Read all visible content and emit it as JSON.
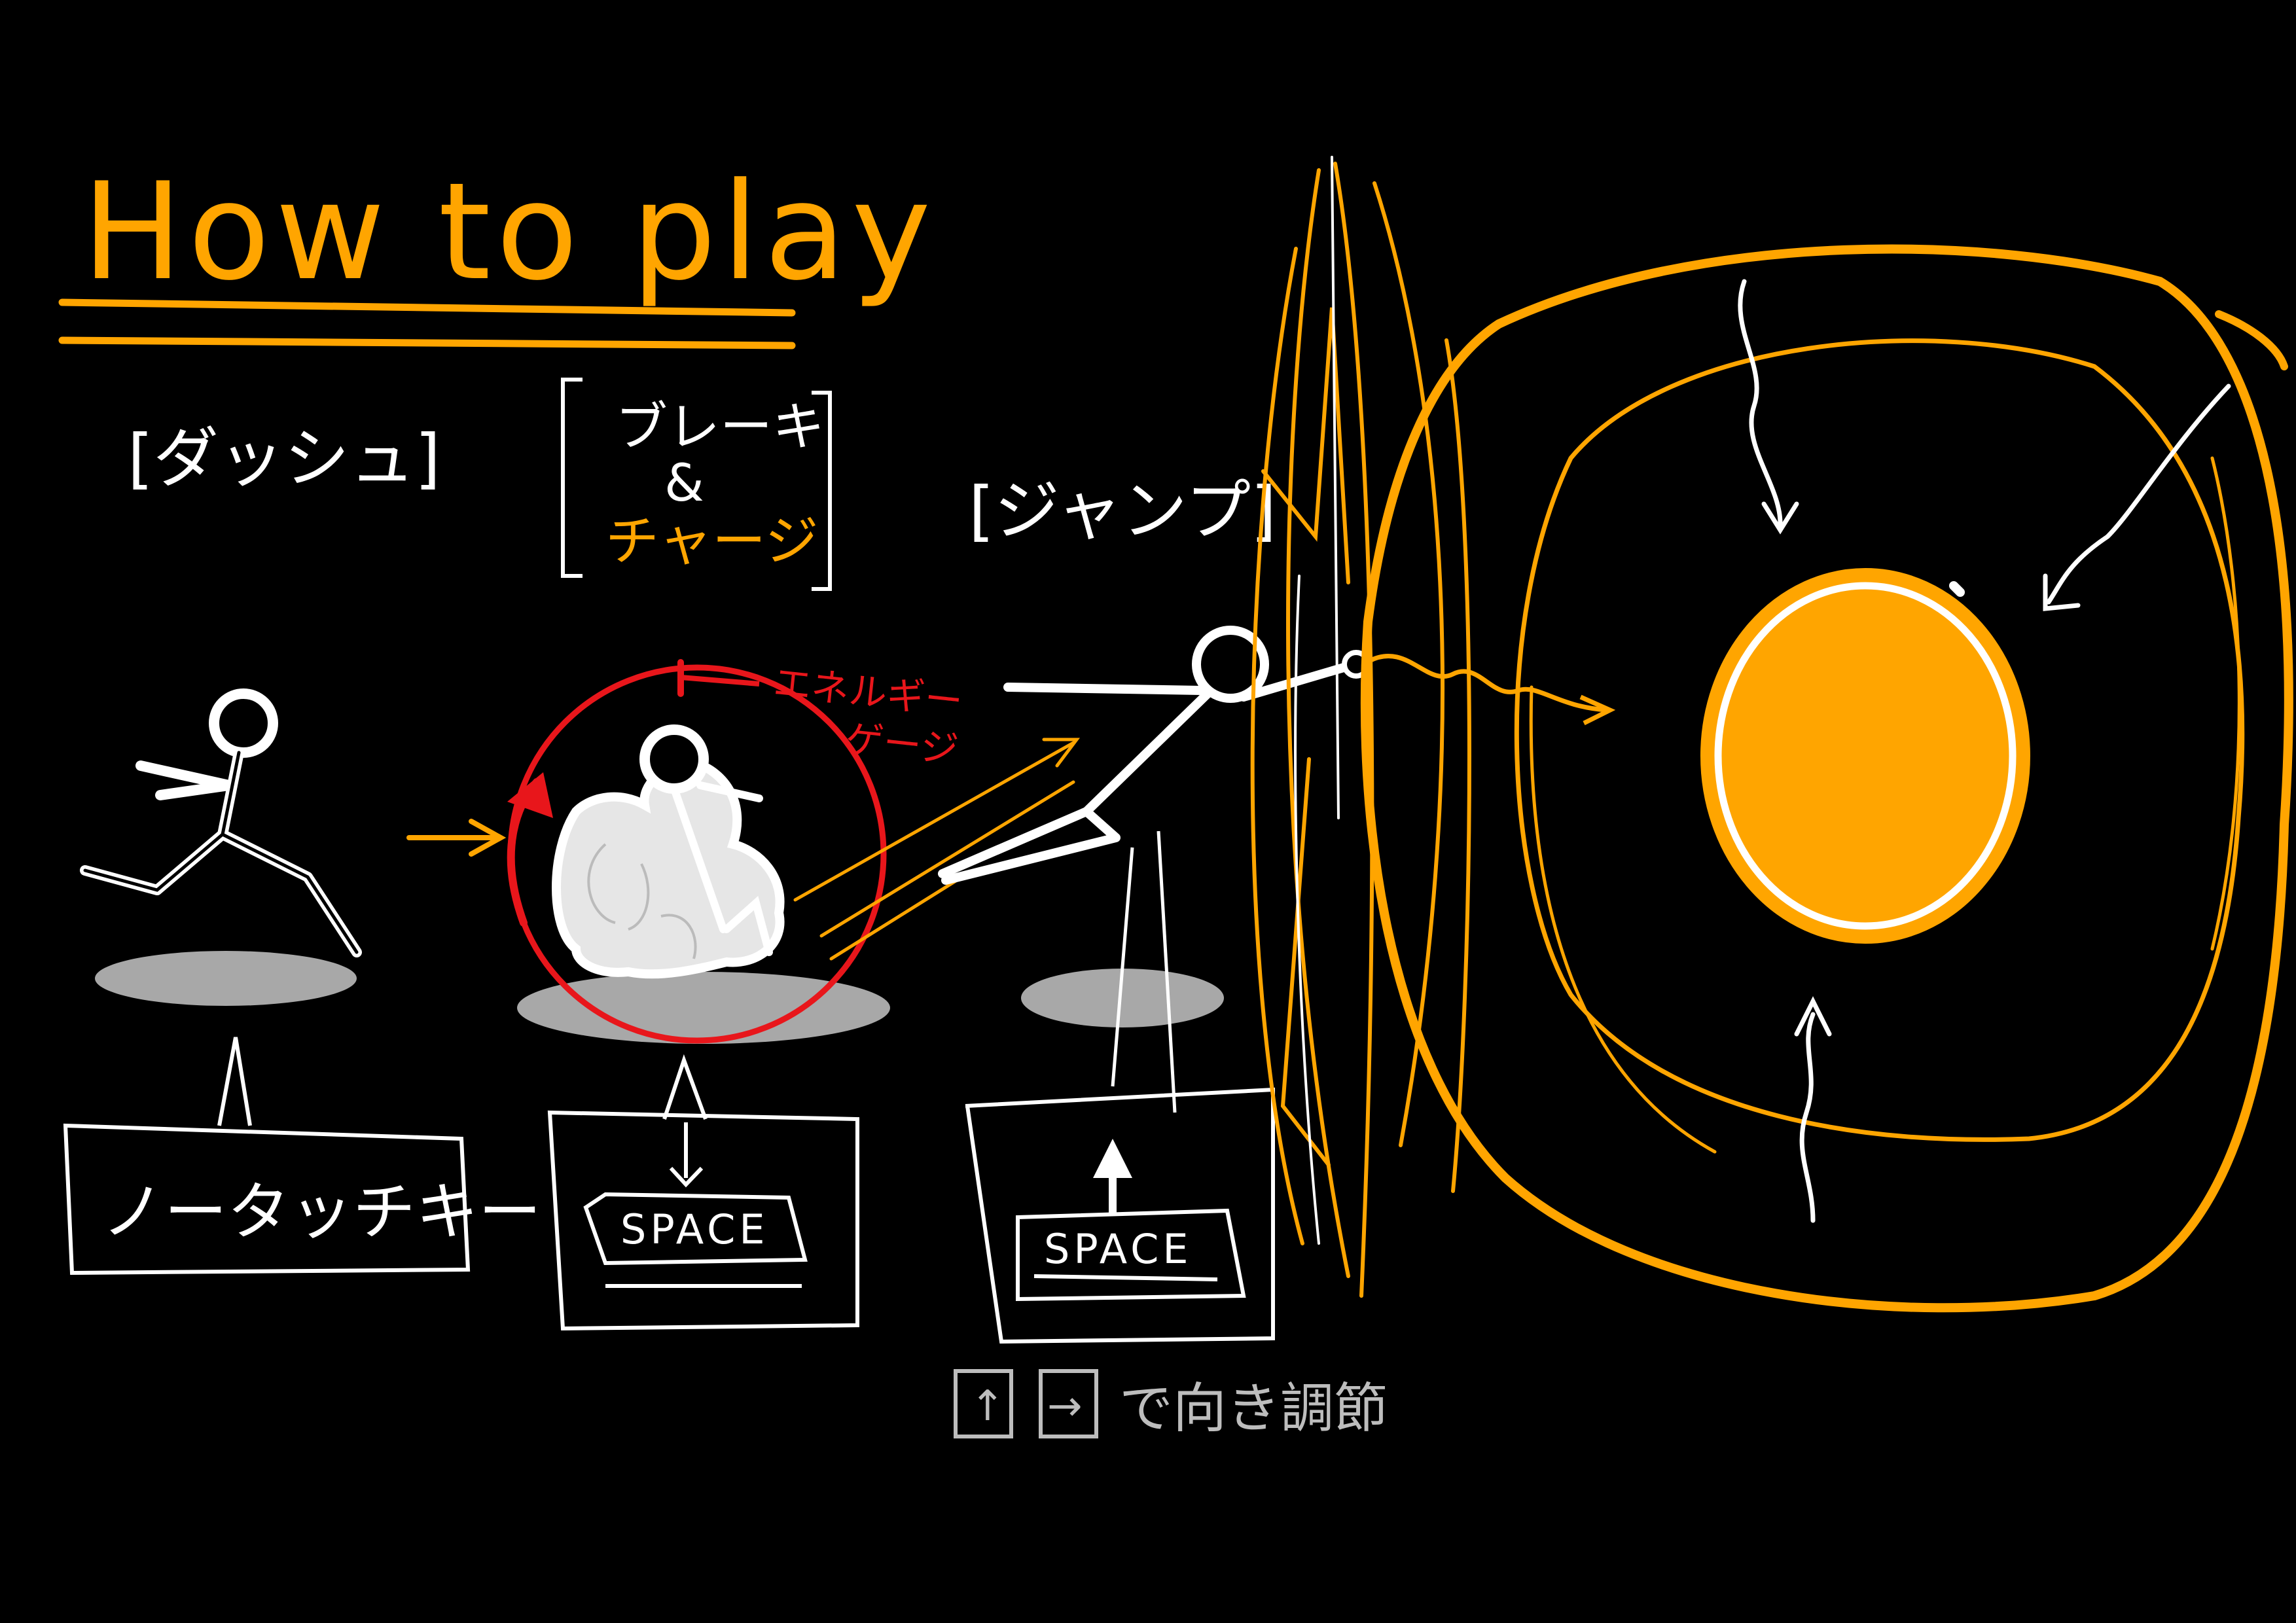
{
  "colors": {
    "background": "#000000",
    "accent": "#FFA500",
    "chalk": "#FFFFFF",
    "gauge": "#E8161B",
    "shadow": "#A8A8A8",
    "hint": "#BDBDBD"
  },
  "title": "How to play",
  "sections": {
    "dash": {
      "label": "[ダッシュ]",
      "control": "ノータッチキー"
    },
    "brake": {
      "label_line1": "ブレーキ",
      "label_line2": "&",
      "label_line3": "チャージ",
      "key": "SPACE",
      "key_action": "press"
    },
    "jump": {
      "label": "[ジャンプ]",
      "key": "SPACE",
      "key_action": "release"
    }
  },
  "gauge": {
    "label_line1": "エネルギー",
    "label_line2": "ゲージ"
  },
  "direction_hint": {
    "key_up": "↑",
    "key_right": "→",
    "text": "で向き調節"
  },
  "icons": [
    "running-stickman-icon",
    "crouching-stickman-icon",
    "jumping-stickman-icon",
    "black-hole-icon",
    "energy-gauge-icon"
  ]
}
